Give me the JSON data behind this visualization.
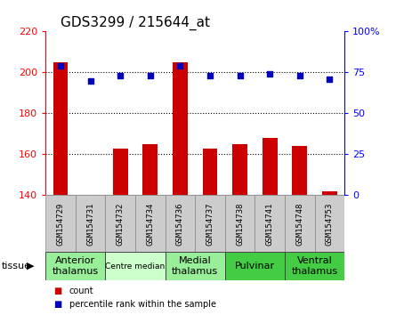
{
  "title": "GDS3299 / 215644_at",
  "samples": [
    "GSM154729",
    "GSM154731",
    "GSM154732",
    "GSM154734",
    "GSM154736",
    "GSM154737",
    "GSM154738",
    "GSM154741",
    "GSM154748",
    "GSM154753"
  ],
  "counts": [
    205,
    140,
    163,
    165,
    205,
    163,
    165,
    168,
    164,
    142
  ],
  "percentiles": [
    79,
    70,
    73,
    73,
    79,
    73,
    73,
    74,
    73,
    71
  ],
  "ylim_left": [
    140,
    220
  ],
  "ylim_right": [
    0,
    100
  ],
  "yticks_left": [
    140,
    160,
    180,
    200,
    220
  ],
  "yticks_right": [
    0,
    25,
    50,
    75,
    100
  ],
  "bar_color": "#cc0000",
  "dot_color": "#0000bb",
  "bar_bottom": 140,
  "tissue_groups": [
    {
      "label": "Anterior\nthalamus",
      "start": 0,
      "end": 2,
      "color": "#99ee99",
      "fontsize": 8
    },
    {
      "label": "Centre median",
      "start": 2,
      "end": 4,
      "color": "#ccffcc",
      "fontsize": 6.5
    },
    {
      "label": "Medial\nthalamus",
      "start": 4,
      "end": 6,
      "color": "#99ee99",
      "fontsize": 8
    },
    {
      "label": "Pulvinar",
      "start": 6,
      "end": 8,
      "color": "#44cc44",
      "fontsize": 8
    },
    {
      "label": "Ventral\nthalamus",
      "start": 8,
      "end": 10,
      "color": "#44cc44",
      "fontsize": 8
    }
  ],
  "legend_count_color": "#cc0000",
  "legend_pct_color": "#0000bb",
  "xlabel_tissue": "tissue",
  "grid_style": "dotted",
  "grid_color": "#000000",
  "background_plot": "#ffffff",
  "background_xtick": "#cccccc",
  "title_fontsize": 11,
  "bar_width": 0.5
}
